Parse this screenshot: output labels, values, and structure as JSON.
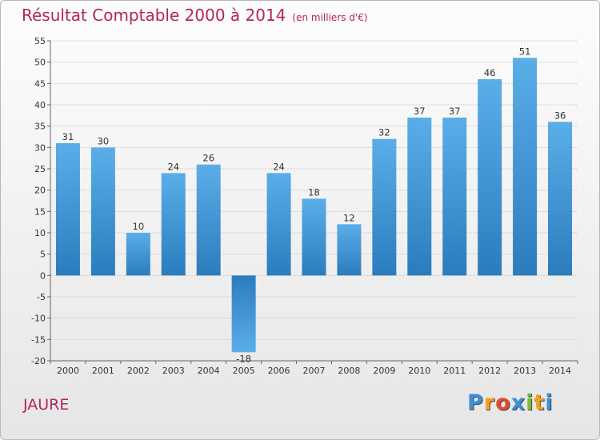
{
  "chart_data": {
    "type": "bar",
    "title": "Résultat Comptable 2000 à 2014",
    "subtitle": "(en milliers d'€)",
    "categories": [
      "2000",
      "2001",
      "2002",
      "2003",
      "2004",
      "2005",
      "2006",
      "2007",
      "2008",
      "2009",
      "2010",
      "2011",
      "2012",
      "2013",
      "2014"
    ],
    "values": [
      31,
      30,
      10,
      24,
      26,
      -18,
      24,
      18,
      12,
      32,
      37,
      37,
      46,
      51,
      36
    ],
    "ylim": [
      -20,
      55
    ],
    "yticks": [
      55,
      50,
      45,
      40,
      35,
      30,
      25,
      20,
      15,
      10,
      5,
      0,
      -5,
      -10,
      -15,
      -20
    ],
    "xlabel": "",
    "ylabel": "",
    "grid": true,
    "colors": {
      "bar_top": "#5aaee8",
      "bar_bottom": "#2b7cbd",
      "grid": "#c8c8c8",
      "title": "#b5245f"
    }
  },
  "place_name": "JAURE",
  "logo": {
    "letters": [
      "P",
      "r",
      "o",
      "x",
      "i",
      "t",
      "i"
    ],
    "colors": [
      "#3d8fd6",
      "#f2a11f",
      "#e64a2e",
      "#3d8fd6",
      "#7dbb32",
      "#f2a11f",
      "#3d8fd6"
    ]
  }
}
